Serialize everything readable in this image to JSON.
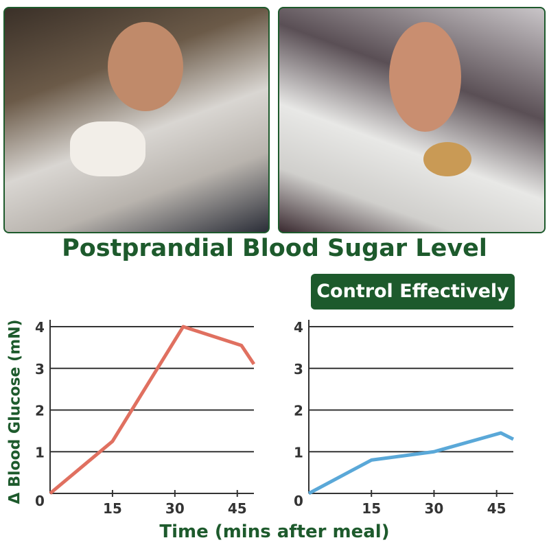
{
  "title": "Postprandial Blood Sugar Level",
  "badge": "Control Effectively",
  "chart_data": [
    {
      "type": "line",
      "ylabel": "Δ Blood Glucose (mN)",
      "xlabel": "Time (mins after meal)",
      "x_ticks": [
        15,
        30,
        45
      ],
      "y_ticks": [
        0,
        1,
        2,
        3,
        4
      ],
      "ylim": [
        0,
        4
      ],
      "xlim": [
        0,
        49
      ],
      "grid": "horizontal",
      "color": "#e07060",
      "x": [
        0,
        15,
        32,
        46,
        49
      ],
      "values": [
        0,
        1.25,
        4,
        3.55,
        3.1
      ]
    },
    {
      "type": "line",
      "ylabel": "Δ Blood Glucose (mN)",
      "xlabel": "Time (mins after meal)",
      "x_ticks": [
        15,
        30,
        45
      ],
      "y_ticks": [
        0,
        1,
        2,
        3,
        4
      ],
      "ylim": [
        0,
        4
      ],
      "xlim": [
        0,
        49
      ],
      "grid": "horizontal",
      "color": "#5aa8d8",
      "x": [
        0,
        15,
        30,
        46,
        49
      ],
      "values": [
        0,
        0.8,
        1,
        1.45,
        1.3
      ]
    }
  ]
}
